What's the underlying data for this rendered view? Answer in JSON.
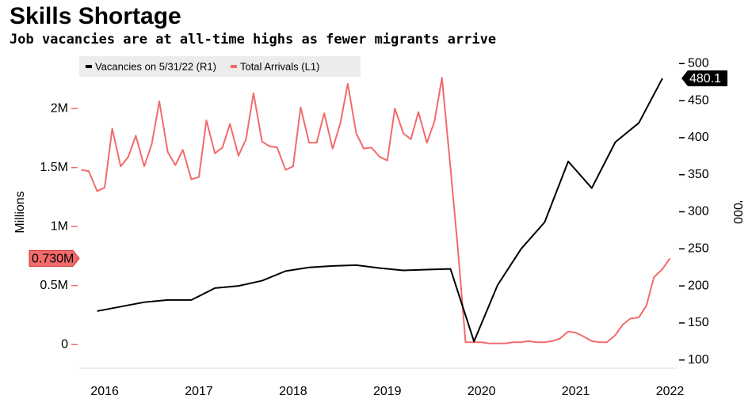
{
  "chart_data": {
    "type": "line",
    "title": "Skills Shortage",
    "subtitle": "Job vacancies are at all-time highs as fewer migrants arrive",
    "y_label": "Millions",
    "y2_label": "'000",
    "xlim": [
      2016.23,
      2022.58
    ],
    "xticks": [
      {
        "value": 2016.5,
        "label": "2016"
      },
      {
        "value": 2017.5,
        "label": "2017"
      },
      {
        "value": 2018.5,
        "label": "2018"
      },
      {
        "value": 2019.5,
        "label": "2019"
      },
      {
        "value": 2020.5,
        "label": "2020"
      },
      {
        "value": 2021.5,
        "label": "2021"
      },
      {
        "value": 2022.5,
        "label": "2022"
      }
    ],
    "ylim": [
      -0.2,
      2.45
    ],
    "yticks": [
      0,
      {
        "value": 0.5,
        "label": "0.5M"
      },
      {
        "value": 1,
        "label": "1M"
      },
      {
        "value": 1.5,
        "label": "1.5M"
      },
      {
        "value": 2,
        "label": "2M"
      }
    ],
    "y2lim": [
      89,
      511
    ],
    "y2ticks": [
      100,
      150,
      200,
      250,
      300,
      350,
      400,
      450,
      500
    ],
    "series": [
      {
        "name": "Vacancies on 5/31/22 (R1)",
        "color": "#000000",
        "axis": "y2",
        "last_label": "480.1",
        "x": [
          2016.42,
          2016.67,
          2016.92,
          2017.17,
          2017.42,
          2017.67,
          2017.92,
          2018.17,
          2018.42,
          2018.67,
          2018.92,
          2019.17,
          2019.42,
          2019.67,
          2019.92,
          2020.17,
          2020.42,
          2020.67,
          2020.92,
          2021.17,
          2021.42,
          2021.67,
          2021.92,
          2022.17,
          2022.42
        ],
        "values": [
          166,
          172,
          178,
          181,
          181,
          197,
          200,
          207,
          220,
          225,
          227,
          228,
          224,
          221,
          222,
          223,
          125,
          201,
          250,
          286,
          368,
          332,
          394,
          420,
          480.1
        ]
      },
      {
        "name": "Total Arrivals (L1)",
        "color": "#f26b6b",
        "last_label": "0.730M",
        "x": [
          2016.25,
          2016.33,
          2016.42,
          2016.5,
          2016.58,
          2016.67,
          2016.75,
          2016.83,
          2016.92,
          2017,
          2017.08,
          2017.17,
          2017.25,
          2017.33,
          2017.42,
          2017.5,
          2017.58,
          2017.67,
          2017.75,
          2017.83,
          2017.92,
          2018,
          2018.08,
          2018.17,
          2018.25,
          2018.33,
          2018.42,
          2018.5,
          2018.58,
          2018.67,
          2018.75,
          2018.83,
          2018.92,
          2019,
          2019.08,
          2019.17,
          2019.25,
          2019.33,
          2019.42,
          2019.5,
          2019.58,
          2019.67,
          2019.75,
          2019.83,
          2019.92,
          2020,
          2020.08,
          2020.17,
          2020.25,
          2020.33,
          2020.42,
          2020.5,
          2020.58,
          2020.67,
          2020.75,
          2020.83,
          2020.92,
          2021,
          2021.08,
          2021.17,
          2021.25,
          2021.33,
          2021.42,
          2021.5,
          2021.58,
          2021.67,
          2021.75,
          2021.83,
          2021.92,
          2022,
          2022.08,
          2022.17,
          2022.25,
          2022.33,
          2022.42,
          2022.5
        ],
        "values": [
          1.48,
          1.47,
          1.3,
          1.33,
          1.83,
          1.51,
          1.59,
          1.77,
          1.51,
          1.7,
          2.06,
          1.63,
          1.52,
          1.65,
          1.4,
          1.42,
          1.9,
          1.62,
          1.67,
          1.87,
          1.6,
          1.74,
          2.13,
          1.72,
          1.68,
          1.67,
          1.48,
          1.51,
          2.01,
          1.71,
          1.71,
          1.96,
          1.66,
          1.87,
          2.21,
          1.79,
          1.66,
          1.67,
          1.59,
          1.56,
          2.0,
          1.79,
          1.74,
          1.97,
          1.71,
          1.89,
          2.26,
          1.5,
          0.8,
          0.02,
          0.02,
          0.02,
          0.01,
          0.01,
          0.01,
          0.02,
          0.02,
          0.03,
          0.02,
          0.02,
          0.03,
          0.05,
          0.11,
          0.1,
          0.07,
          0.03,
          0.02,
          0.02,
          0.08,
          0.17,
          0.22,
          0.23,
          0.33,
          0.57,
          0.64,
          0.73
        ]
      }
    ]
  }
}
